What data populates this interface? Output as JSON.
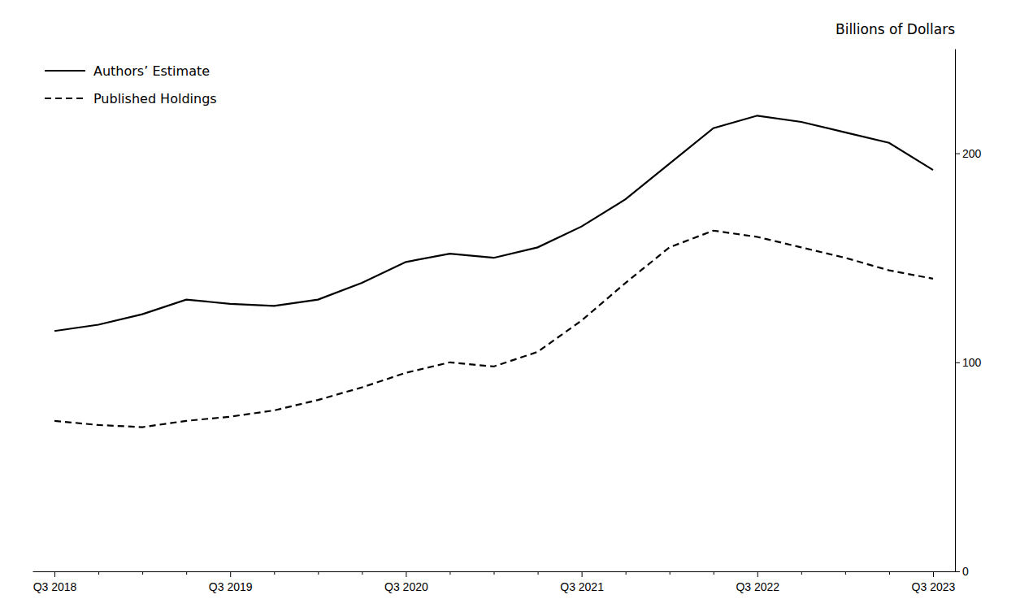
{
  "chart_data": {
    "type": "line",
    "title": "Billions of Dollars",
    "categories": [
      "Q3 2018",
      null,
      null,
      null,
      "Q3 2019",
      null,
      null,
      null,
      "Q3 2020",
      null,
      null,
      null,
      "Q3 2021",
      null,
      null,
      null,
      "Q3 2022",
      null,
      null,
      null,
      "Q3 2023"
    ],
    "series": [
      {
        "name": "Authors’ Estimate",
        "color": "#000000",
        "line_style": "solid",
        "values": [
          115,
          118,
          123,
          130,
          128,
          127,
          130,
          138,
          148,
          152,
          150,
          155,
          165,
          178,
          195,
          212,
          218,
          215,
          210,
          205,
          192
        ]
      },
      {
        "name": "Published Holdings",
        "color": "#000000",
        "line_style": "dashed",
        "values": [
          72,
          70,
          69,
          72,
          74,
          77,
          82,
          88,
          95,
          100,
          98,
          105,
          120,
          138,
          155,
          163,
          160,
          155,
          150,
          144,
          140
        ]
      }
    ],
    "ylim": [
      0,
      250
    ],
    "yticks": [
      0,
      100,
      200
    ],
    "grid": false,
    "legend": "upper left"
  }
}
